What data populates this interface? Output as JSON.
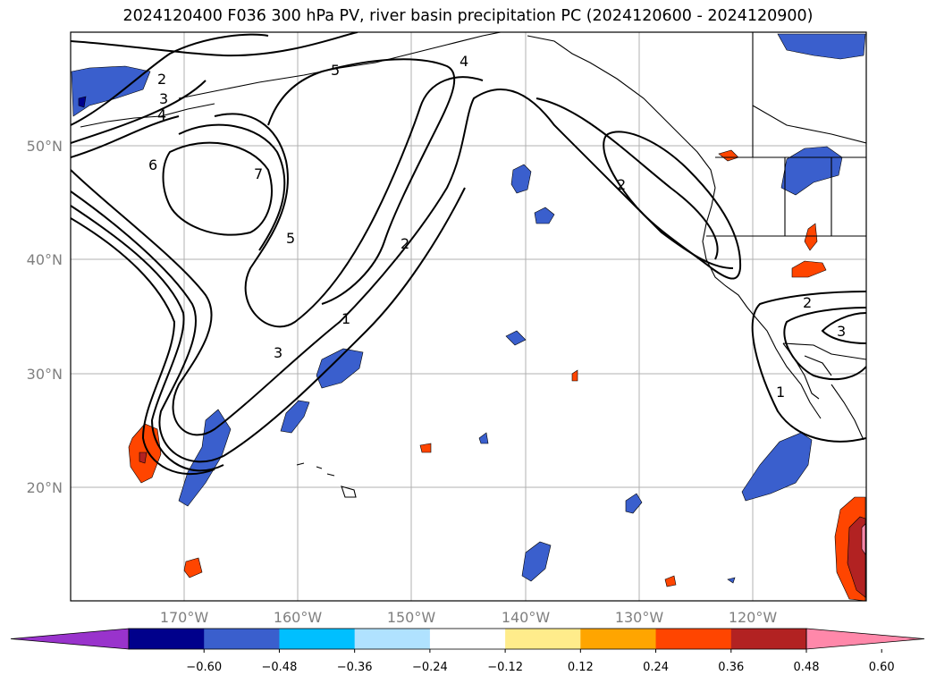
{
  "title": "2024120400 F036 300 hPa PV, river basin precipitation PC (2024120600 - 2024120900)",
  "map": {
    "lon_range": [
      -180,
      -110
    ],
    "lat_range": [
      10,
      60
    ],
    "gridlines": true,
    "lat_labels": [
      "20°N",
      "30°N",
      "40°N",
      "50°N"
    ],
    "lon_labels": [
      "170°W",
      "160°W",
      "150°W",
      "140°W",
      "130°W",
      "120°W"
    ],
    "pv_contour_labels": [
      "1",
      "2",
      "3",
      "4",
      "5",
      "6",
      "7",
      "2",
      "3",
      "4",
      "5",
      "1",
      "2",
      "3",
      "2"
    ]
  },
  "colorbar": {
    "ticks": [
      "−0.60",
      "−0.48",
      "−0.36",
      "−0.24",
      "−0.12",
      "0.12",
      "0.24",
      "0.36",
      "0.48",
      "0.60"
    ],
    "colors": [
      "#9933cc",
      "#00008b",
      "#3a5fcd",
      "#00bfff",
      "#b0e2ff",
      "#ffffff",
      "#ffec8b",
      "#ffa500",
      "#ff4500",
      "#b22222",
      "#ff88aa"
    ]
  }
}
